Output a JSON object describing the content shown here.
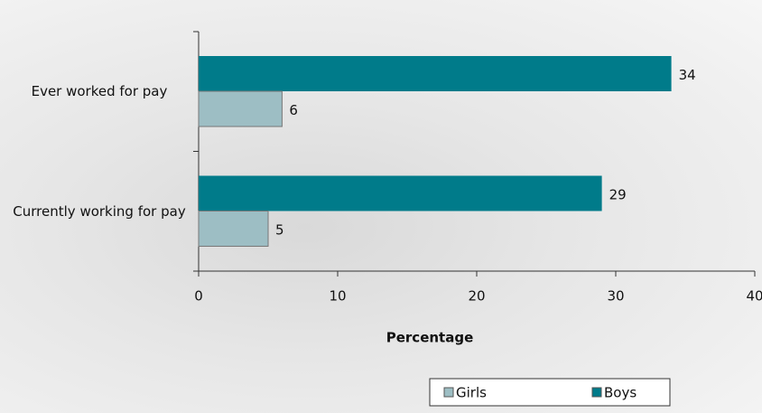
{
  "chart_data": {
    "type": "bar",
    "orientation": "horizontal",
    "categories": [
      "Ever worked for pay",
      "Currently working for pay"
    ],
    "series": [
      {
        "name": "Boys",
        "color": "#007b8a",
        "values": [
          34,
          29
        ]
      },
      {
        "name": "Girls",
        "color": "#9dbec4",
        "values": [
          6,
          5
        ]
      }
    ],
    "x_label": "Percentage",
    "xlim": [
      0,
      40
    ],
    "xticks": [
      0,
      10,
      20,
      30,
      40
    ],
    "legend": "bottom-right"
  }
}
